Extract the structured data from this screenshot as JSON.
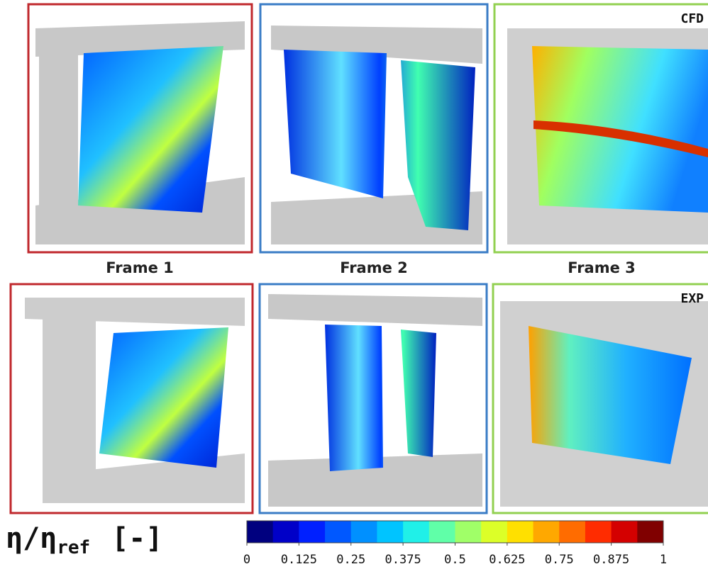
{
  "frames": [
    {
      "label": "Frame 1"
    },
    {
      "label": "Frame 2"
    },
    {
      "label": "Frame 3"
    }
  ],
  "row_labels": [
    "CFD",
    "EXP"
  ],
  "colorbar": {
    "label": "η/η",
    "label_sub": "ref",
    "unit": "[-]",
    "ticks": [
      0,
      0.125,
      0.25,
      0.375,
      0.5,
      0.625,
      0.75,
      0.875,
      1
    ],
    "colors": [
      "#00007f",
      "#0000c8",
      "#0020ff",
      "#0058ff",
      "#0090ff",
      "#00c4ff",
      "#20f0e8",
      "#60ffa8",
      "#a0ff68",
      "#dcff28",
      "#ffe000",
      "#ffa800",
      "#ff6c00",
      "#ff2c00",
      "#d40000",
      "#800000"
    ]
  }
}
